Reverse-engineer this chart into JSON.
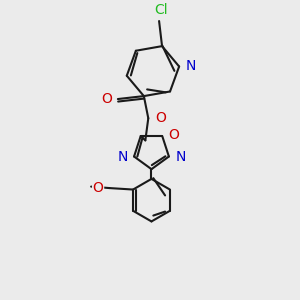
{
  "background_color": "#ebebeb",
  "bond_color": "#1a1a1a",
  "bond_width": 1.5,
  "atom_colors": {
    "N": "#0000cc",
    "O": "#cc0000",
    "Cl": "#22bb22"
  },
  "font_size": 10
}
